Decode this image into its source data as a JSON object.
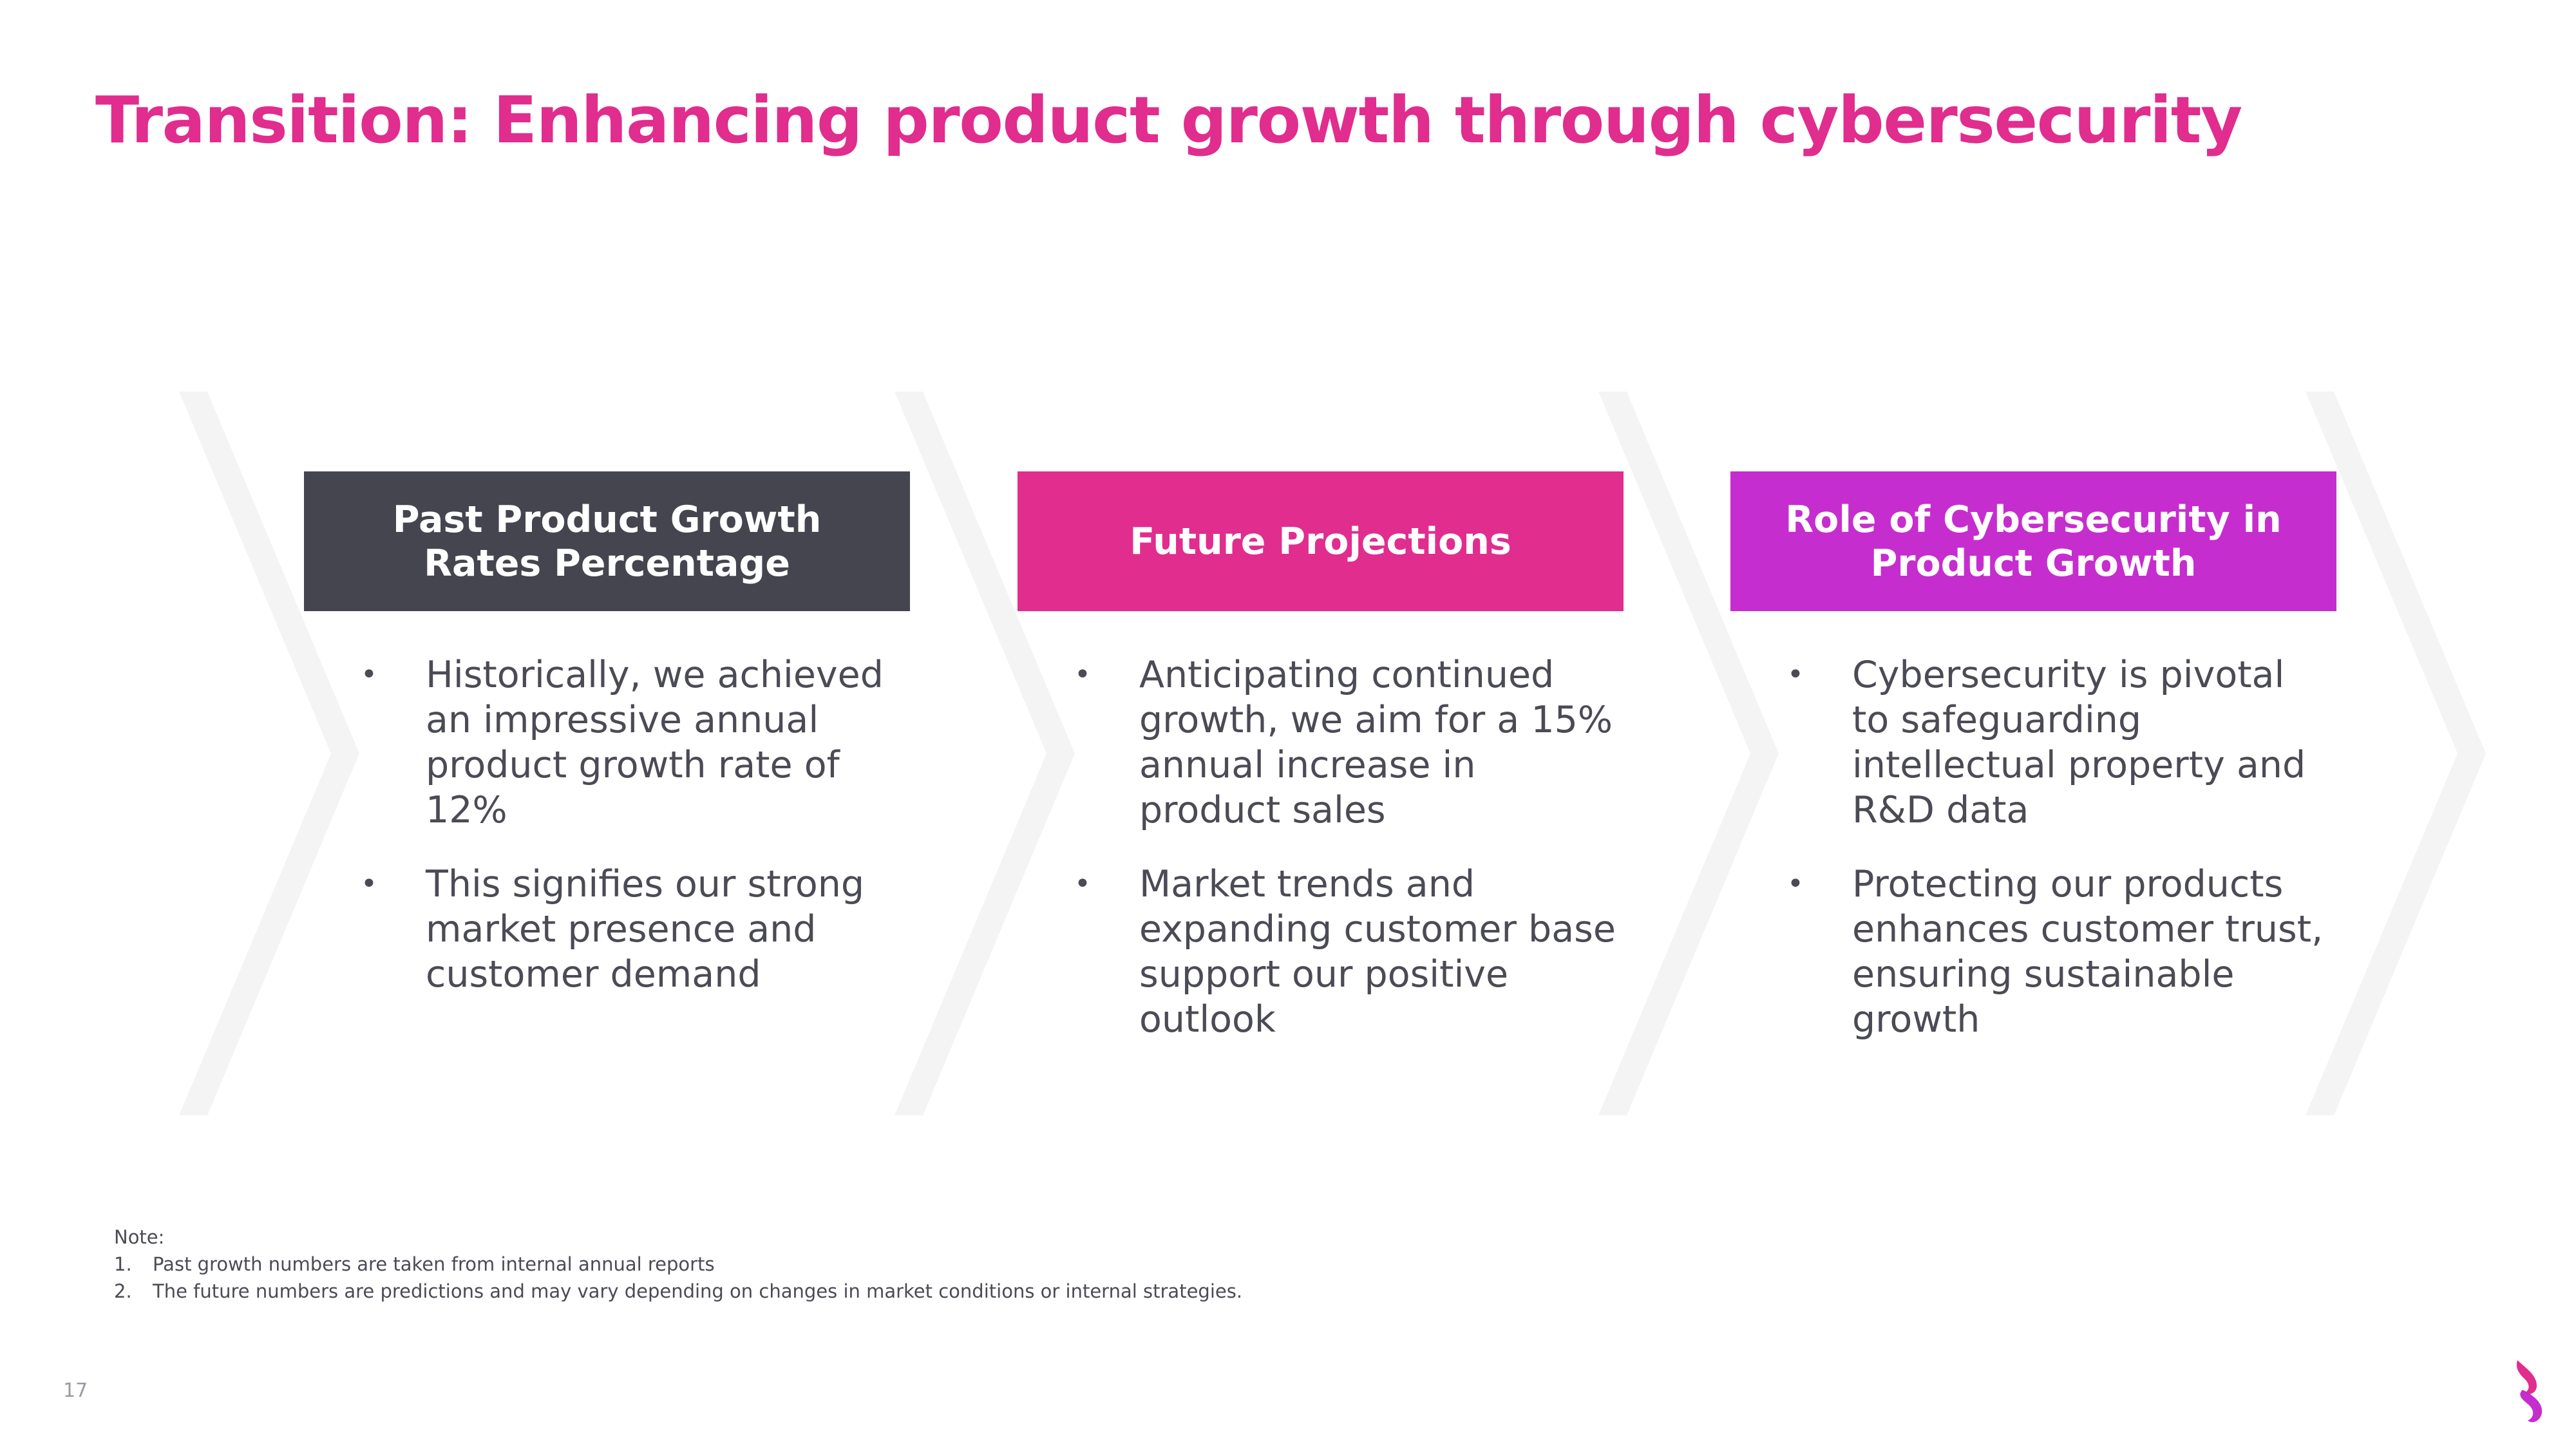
{
  "slide": {
    "title": "Transition: Enhancing product growth through cybersecurity",
    "page_number": "17"
  },
  "colors": {
    "title": "#e02d8e",
    "chevron": "#f4f4f5",
    "body_text": "#4b4b55"
  },
  "columns": [
    {
      "header": "Past Product Growth Rates Percentage",
      "header_color": "#454550",
      "bullets": [
        "Historically, we achieved an impressive annual product growth rate of 12%",
        "This signifies our strong market presence and customer demand"
      ]
    },
    {
      "header": "Future Projections",
      "header_color": "#e02d8e",
      "bullets": [
        "Anticipating continued growth, we aim for a 15% annual increase in product sales",
        "Market trends and expanding customer base support our positive outlook"
      ]
    },
    {
      "header": "Role of Cybersecurity in Product Growth",
      "header_color": "#c62dce",
      "bullets": [
        "Cybersecurity is pivotal to safeguarding intellectual property and R&D data",
        "Protecting our products enhances customer trust, ensuring sustainable growth"
      ]
    }
  ],
  "bullet_symbol": "•",
  "notes": {
    "label": "Note:",
    "items": [
      {
        "num": "1.",
        "text": "Past growth numbers are taken from internal annual reports"
      },
      {
        "num": "2.",
        "text": "The future numbers are predictions and may vary depending on changes in market conditions or internal strategies."
      }
    ]
  },
  "logo_icon": "flame-logo-icon"
}
